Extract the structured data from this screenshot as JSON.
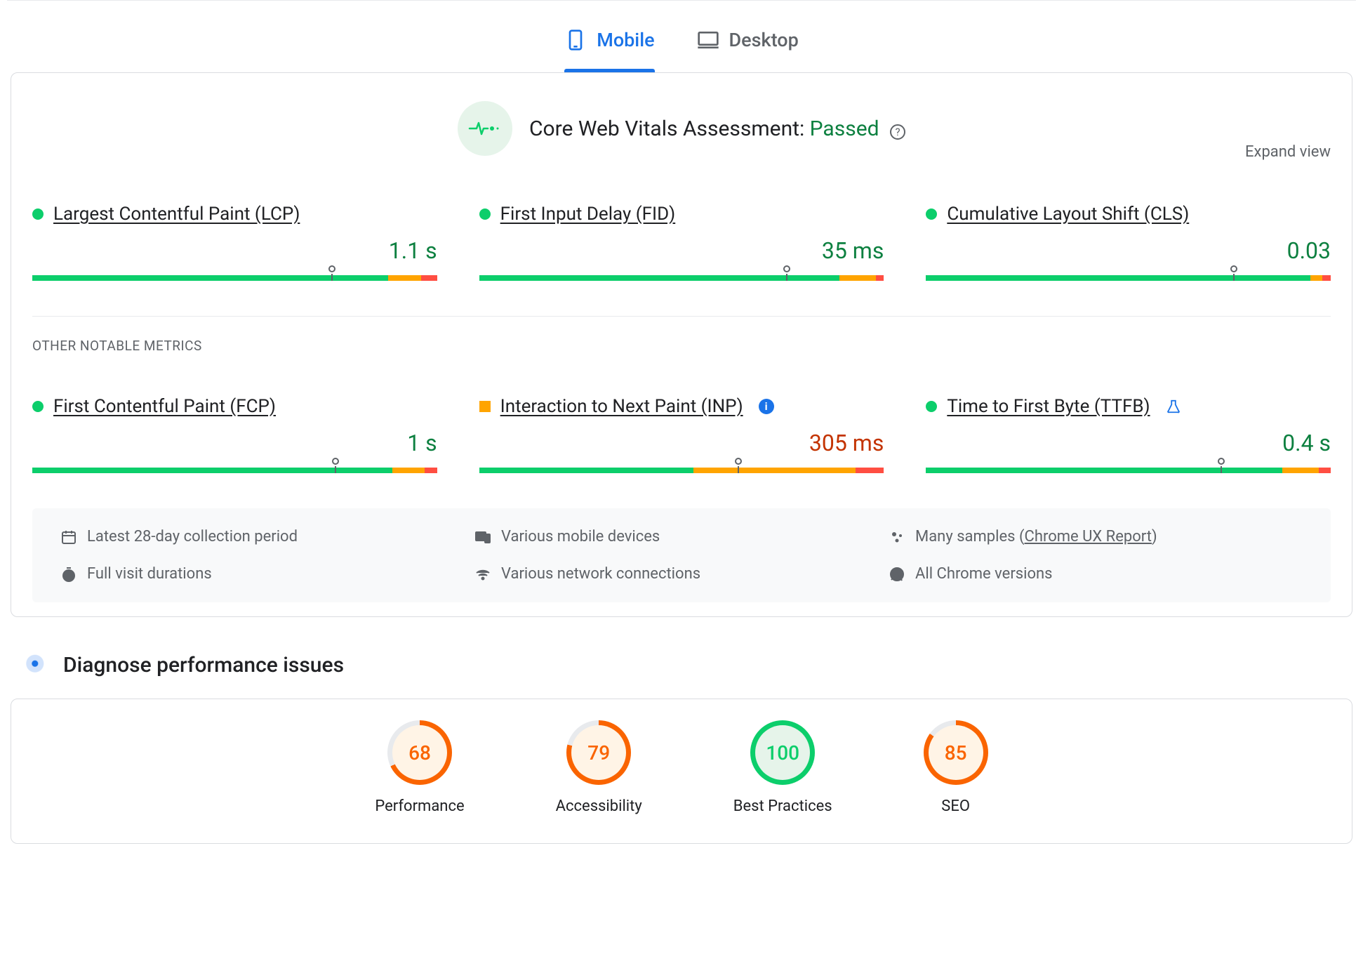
{
  "colors": {
    "blue": "#1a73e8",
    "green_pass": "#0cce6b",
    "green_text": "#0d8040",
    "orange_bar": "#ffa400",
    "orange_text": "#c33300",
    "red": "#ff4e42",
    "grey_text": "#5f6368",
    "grey_border": "#dadce0",
    "bg_pulse": "#e6f4ea",
    "bg_meta": "#f8f9fa"
  },
  "tabs": {
    "mobile": "Mobile",
    "desktop": "Desktop",
    "active": "mobile"
  },
  "cwv": {
    "title_prefix": "Core Web Vitals Assessment: ",
    "status": "Passed",
    "expand": "Expand view"
  },
  "metrics_primary": [
    {
      "id": "lcp",
      "name": "Largest Contentful Paint (LCP)",
      "value": "1.1 s",
      "status": "green",
      "marker_pct": 74,
      "segments": [
        88,
        8,
        4
      ]
    },
    {
      "id": "fid",
      "name": "First Input Delay (FID)",
      "value": "35 ms",
      "status": "green",
      "marker_pct": 76,
      "segments": [
        89,
        9,
        2
      ]
    },
    {
      "id": "cls",
      "name": "Cumulative Layout Shift (CLS)",
      "value": "0.03",
      "status": "green",
      "marker_pct": 76,
      "segments": [
        95,
        3,
        2
      ]
    }
  ],
  "other_label": "OTHER NOTABLE METRICS",
  "metrics_other": [
    {
      "id": "fcp",
      "name": "First Contentful Paint (FCP)",
      "value": "1 s",
      "status": "green",
      "marker_pct": 75,
      "segments": [
        89,
        8,
        3
      ],
      "badge": null
    },
    {
      "id": "inp",
      "name": "Interaction to Next Paint (INP)",
      "value": "305 ms",
      "status": "orange",
      "marker_pct": 64,
      "segments": [
        53,
        40,
        7
      ],
      "badge": "info"
    },
    {
      "id": "ttfb",
      "name": "Time to First Byte (TTFB)",
      "value": "0.4 s",
      "status": "green",
      "marker_pct": 73,
      "segments": [
        88,
        9,
        3
      ],
      "badge": "flask"
    }
  ],
  "meta": {
    "period": "Latest 28-day collection period",
    "devices": "Various mobile devices",
    "samples_prefix": "Many samples (",
    "samples_link": "Chrome UX Report",
    "samples_suffix": ")",
    "durations": "Full visit durations",
    "network": "Various network connections",
    "versions": "All Chrome versions"
  },
  "diagnose": {
    "title": "Diagnose performance issues"
  },
  "gauges": [
    {
      "id": "performance",
      "label": "Performance",
      "score": 68,
      "color": "#fa6400",
      "bg": "#fff4e6"
    },
    {
      "id": "accessibility",
      "label": "Accessibility",
      "score": 79,
      "color": "#fa6400",
      "bg": "#fff4e6"
    },
    {
      "id": "best-practices",
      "label": "Best Practices",
      "score": 100,
      "color": "#0cce6b",
      "bg": "#e6f4ea"
    },
    {
      "id": "seo",
      "label": "SEO",
      "score": 85,
      "color": "#fa6400",
      "bg": "#fff4e6"
    }
  ]
}
